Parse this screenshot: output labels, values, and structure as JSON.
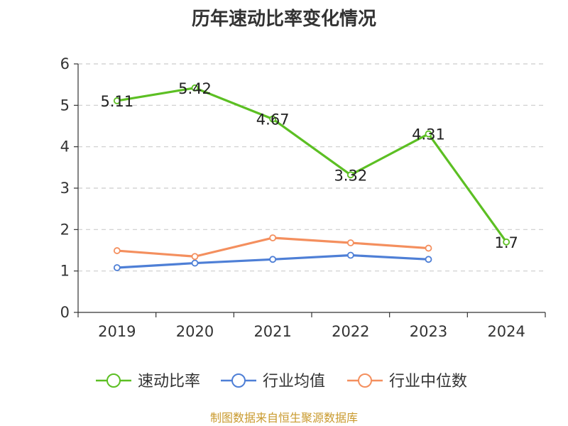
{
  "chart_data": {
    "type": "line",
    "title": "历年速动比率变化情况",
    "categories": [
      "2019",
      "2020",
      "2021",
      "2022",
      "2023",
      "2024"
    ],
    "ylim": [
      0,
      6
    ],
    "yticks": [
      "0",
      "1",
      "2",
      "3",
      "4",
      "5",
      "6"
    ],
    "grid": true,
    "legend_placement": "bottom",
    "series": [
      {
        "name": "速动比率",
        "color": "#5cbf23",
        "values": [
          5.11,
          5.42,
          4.67,
          3.32,
          4.31,
          1.7
        ],
        "labels": [
          "5.11",
          "5.42",
          "4.67",
          "3.32",
          "4.31",
          "1.7"
        ]
      },
      {
        "name": "行业均值",
        "color": "#4e7fd6",
        "values": [
          1.08,
          1.19,
          1.28,
          1.38,
          1.28,
          null
        ]
      },
      {
        "name": "行业中位数",
        "color": "#f48f5e",
        "values": [
          1.49,
          1.35,
          1.8,
          1.68,
          1.55,
          null
        ]
      }
    ]
  },
  "source": "制图数据来自恒生聚源数据库"
}
